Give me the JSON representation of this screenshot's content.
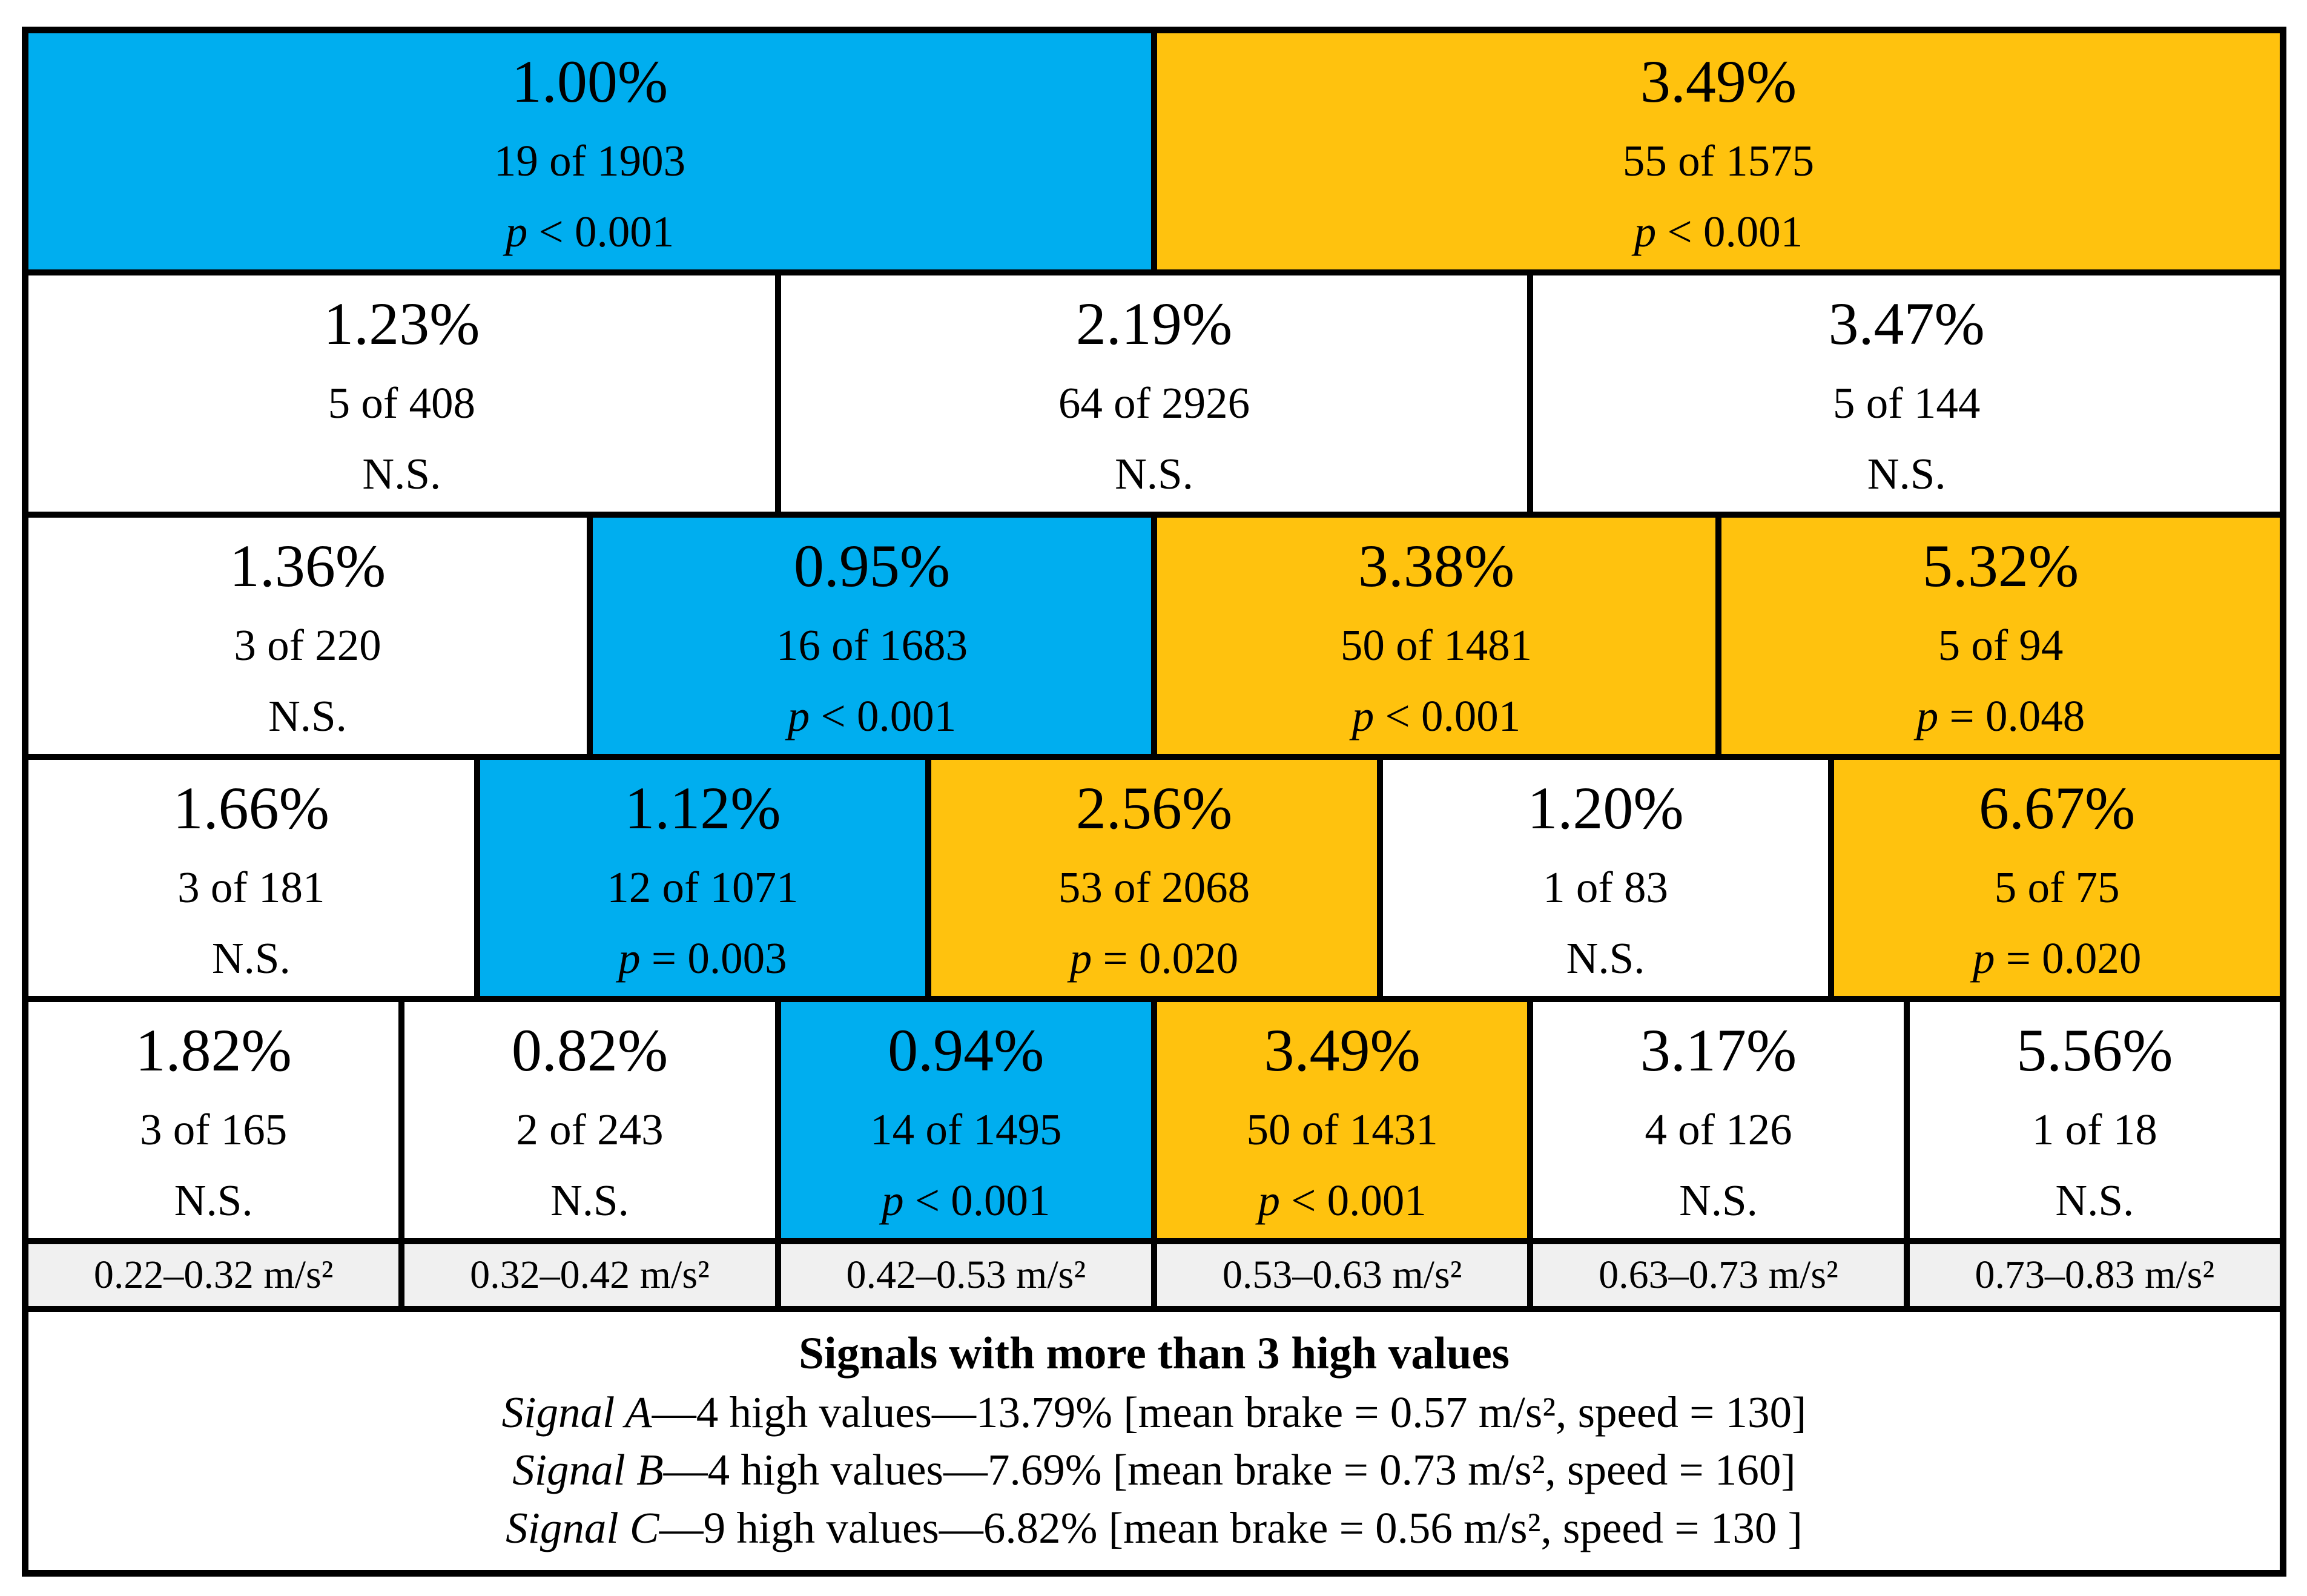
{
  "chart_data": {
    "type": "table",
    "title": "",
    "bin_unit": "m/s²",
    "colors": {
      "blue_highlight": "#00AEEF",
      "orange_highlight": "#FFC20E",
      "plain": "#FFFFFF",
      "bin_label_bg": "#F0F0F0",
      "border": "#000000"
    },
    "rows": [
      {
        "cells": [
          {
            "pct": "1.00%",
            "count": "19 of 1903",
            "sig": "p < 0.001",
            "bg": "#00AEEF"
          },
          {
            "pct": "3.49%",
            "count": "55 of 1575",
            "sig": "p < 0.001",
            "bg": "#FFC20E"
          }
        ]
      },
      {
        "cells": [
          {
            "pct": "1.23%",
            "count": "5 of 408",
            "sig": "N.S.",
            "bg": "#FFFFFF"
          },
          {
            "pct": "2.19%",
            "count": "64 of 2926",
            "sig": "N.S.",
            "bg": "#FFFFFF"
          },
          {
            "pct": "3.47%",
            "count": "5 of 144",
            "sig": "N.S.",
            "bg": "#FFFFFF"
          }
        ]
      },
      {
        "cells": [
          {
            "pct": "1.36%",
            "count": "3 of 220",
            "sig": "N.S.",
            "bg": "#FFFFFF"
          },
          {
            "pct": "0.95%",
            "count": "16 of 1683",
            "sig": "p < 0.001",
            "bg": "#00AEEF"
          },
          {
            "pct": "3.38%",
            "count": "50 of 1481",
            "sig": "p < 0.001",
            "bg": "#FFC20E"
          },
          {
            "pct": "5.32%",
            "count": "5 of 94",
            "sig": "p = 0.048",
            "bg": "#FFC20E"
          }
        ]
      },
      {
        "cells": [
          {
            "pct": "1.66%",
            "count": "3 of 181",
            "sig": "N.S.",
            "bg": "#FFFFFF"
          },
          {
            "pct": "1.12%",
            "count": "12 of 1071",
            "sig": "p = 0.003",
            "bg": "#00AEEF"
          },
          {
            "pct": "2.56%",
            "count": "53 of 2068",
            "sig": "p = 0.020",
            "bg": "#FFC20E"
          },
          {
            "pct": "1.20%",
            "count": "1 of 83",
            "sig": "N.S.",
            "bg": "#FFFFFF"
          },
          {
            "pct": "6.67%",
            "count": "5 of 75",
            "sig": "p = 0.020",
            "bg": "#FFC20E"
          }
        ]
      },
      {
        "cells": [
          {
            "pct": "1.82%",
            "count": "3 of 165",
            "sig": "N.S.",
            "bg": "#FFFFFF"
          },
          {
            "pct": "0.82%",
            "count": "2 of 243",
            "sig": "N.S.",
            "bg": "#FFFFFF"
          },
          {
            "pct": "0.94%",
            "count": "14 of 1495",
            "sig": "p < 0.001",
            "bg": "#00AEEF"
          },
          {
            "pct": "3.49%",
            "count": "50 of 1431",
            "sig": "p < 0.001",
            "bg": "#FFC20E"
          },
          {
            "pct": "3.17%",
            "count": "4 of 126",
            "sig": "N.S.",
            "bg": "#FFFFFF"
          },
          {
            "pct": "5.56%",
            "count": "1 of 18",
            "sig": "N.S.",
            "bg": "#FFFFFF"
          }
        ]
      }
    ],
    "bin_labels": [
      "0.22–0.32 m/s²",
      "0.32–0.42 m/s²",
      "0.42–0.53 m/s²",
      "0.53–0.63 m/s²",
      "0.63–0.73 m/s²",
      "0.73–0.83 m/s²"
    ],
    "footer": {
      "title": "Signals with more than 3 high values",
      "lines": [
        {
          "name": "Signal A",
          "rest": "—4 high values—13.79% [mean brake = 0.57 m/s², speed = 130]"
        },
        {
          "name": "Signal B",
          "rest": "—4 high values—7.69% [mean brake = 0.73 m/s², speed = 160]"
        },
        {
          "name": "Signal C",
          "rest": "—9 high values—6.82% [mean brake = 0.56 m/s², speed = 130 ]"
        }
      ]
    }
  }
}
